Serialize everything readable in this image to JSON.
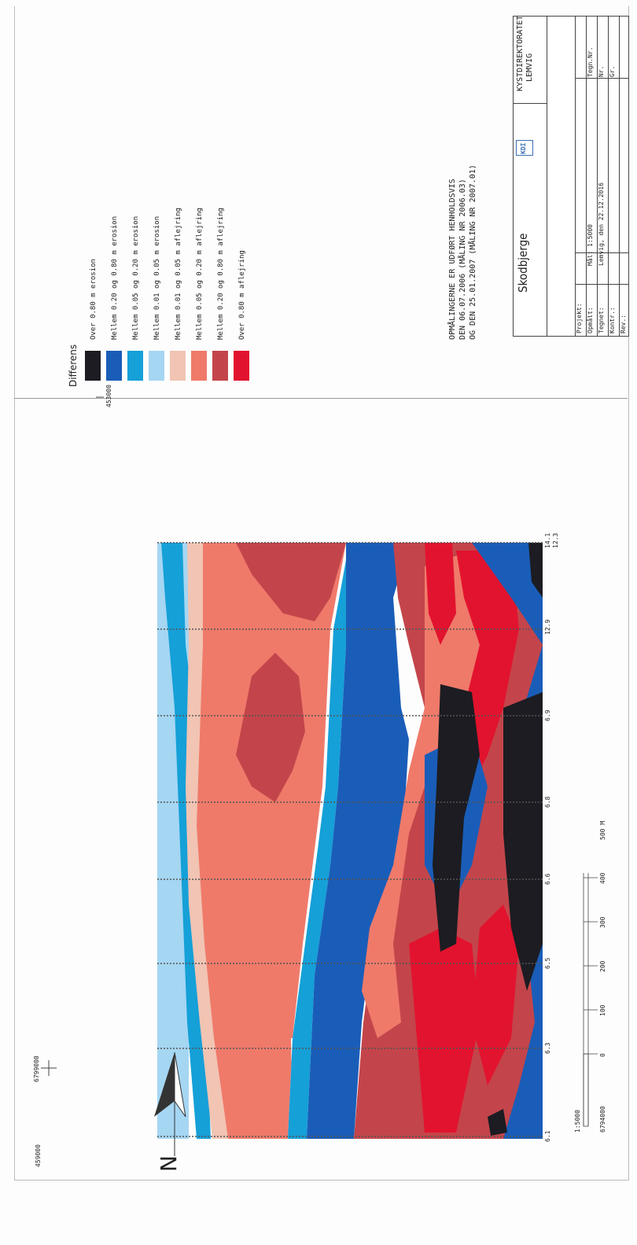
{
  "legend": {
    "title": "Differens",
    "items": [
      {
        "label": "Over 0.80 m erosion",
        "color": "#1c1c22"
      },
      {
        "label": "Mellem 0.20 og 0.80 m erosion",
        "color": "#1a5db8"
      },
      {
        "label": "Mellem 0.05 og 0.20 m erosion",
        "color": "#15a0d8"
      },
      {
        "label": "Mellem 0.01 og 0.05 m erosion",
        "color": "#a5d6f2"
      },
      {
        "label": "Mellem 0.01 og 0.05 m aflejring",
        "color": "#f1c4b3"
      },
      {
        "label": "Mellem 0.05 og 0.20 m aflejring",
        "color": "#ef7a6a"
      },
      {
        "label": "Mellem 0.20 og 0.80 m aflejring",
        "color": "#c3454b"
      },
      {
        "label": "Over 0.80 m aflejring",
        "color": "#e2132e"
      }
    ]
  },
  "notes": {
    "line1": "OPMÅLINGERNE ER UDFØRT HENHOLDSVIS",
    "line2": "DEN 06.07.2006 (MÅLING NR 2006.03)",
    "line3": "OG DEN 25.01.2007 (MÅLING NR 2007.01)"
  },
  "title_block": {
    "place": "Skodbjerge",
    "authority_line1": "KYSTDIREKTORATET",
    "authority_line2": "LEMVIG",
    "logo": "KDI",
    "rows": [
      {
        "label": "Projekt:",
        "value": ""
      },
      {
        "label": "Opmålt:",
        "value": "Mål:  1:5000"
      },
      {
        "label": "Tegnet:",
        "value": "Lemvig, den  22.12.2016"
      },
      {
        "label": "Kontr.:",
        "value": ""
      },
      {
        "label": "Rev.:",
        "value": ""
      }
    ],
    "right_labels": [
      "Tegn.Nr.",
      "Nr.",
      "Gr."
    ]
  },
  "map": {
    "profile_labels": [
      "6.1",
      "6.3",
      "6.5",
      "6.6",
      "6.8",
      "6.9",
      "12.9",
      "14.1"
    ],
    "profile_labels_end": [
      "12.3"
    ],
    "grid_labels": [
      "6799000",
      "459000",
      "453000",
      "6794000"
    ],
    "north_label": "N",
    "colors": {
      "black": "#1c1c22",
      "blue": "#1a5db8",
      "cyan": "#15a0d8",
      "lightblue": "#a5d6f2",
      "peach": "#f1c4b3",
      "salmon": "#ef7a6a",
      "darkred": "#c3454b",
      "red": "#e2132e"
    }
  },
  "scale": {
    "ratio": "1:5000",
    "ticks": [
      "0",
      "100",
      "200",
      "300",
      "400",
      "500 M"
    ]
  }
}
